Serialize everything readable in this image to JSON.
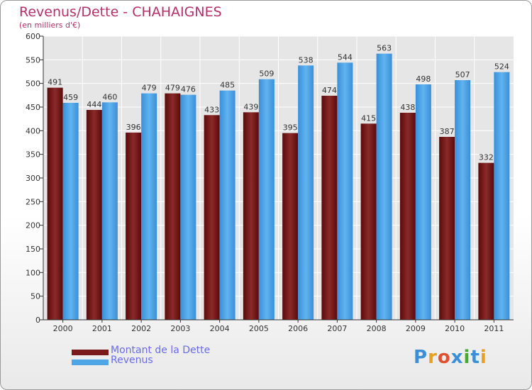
{
  "chart_data": {
    "type": "bar",
    "title": "Revenus/Dette - CHAHAIGNES",
    "subtitle": "(en milliers d'€)",
    "categories": [
      "2000",
      "2001",
      "2002",
      "2003",
      "2004",
      "2005",
      "2006",
      "2007",
      "2008",
      "2009",
      "2010",
      "2011"
    ],
    "series": [
      {
        "name": "Montant de la Dette",
        "color": "#7a1a1a",
        "values": [
          491,
          444,
          396,
          479,
          433,
          439,
          395,
          474,
          415,
          438,
          387,
          332
        ]
      },
      {
        "name": "Revenus",
        "color": "#4ea6e6",
        "values": [
          459,
          460,
          479,
          476,
          485,
          509,
          538,
          544,
          563,
          498,
          507,
          524
        ]
      }
    ],
    "ylim": [
      0,
      600
    ],
    "yticks": [
      0,
      50,
      100,
      150,
      200,
      250,
      300,
      350,
      400,
      450,
      500,
      550,
      600
    ],
    "grid": true,
    "legend_position": "bottom-left"
  },
  "logo": {
    "text": "Proxiti",
    "colors": [
      "#3a8fd8",
      "#e8a020",
      "#e05030",
      "#3a8fd8",
      "#4aa830",
      "#3a8fd8",
      "#e8a020"
    ]
  }
}
